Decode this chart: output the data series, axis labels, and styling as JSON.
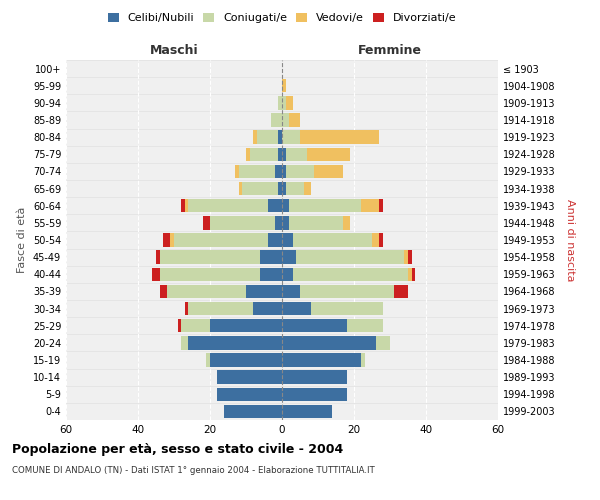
{
  "age_groups": [
    "0-4",
    "5-9",
    "10-14",
    "15-19",
    "20-24",
    "25-29",
    "30-34",
    "35-39",
    "40-44",
    "45-49",
    "50-54",
    "55-59",
    "60-64",
    "65-69",
    "70-74",
    "75-79",
    "80-84",
    "85-89",
    "90-94",
    "95-99",
    "100+"
  ],
  "birth_years": [
    "1999-2003",
    "1994-1998",
    "1989-1993",
    "1984-1988",
    "1979-1983",
    "1974-1978",
    "1969-1973",
    "1964-1968",
    "1959-1963",
    "1954-1958",
    "1949-1953",
    "1944-1948",
    "1939-1943",
    "1934-1938",
    "1929-1933",
    "1924-1928",
    "1919-1923",
    "1914-1918",
    "1909-1913",
    "1904-1908",
    "≤ 1903"
  ],
  "male": {
    "celibi": [
      16,
      18,
      18,
      20,
      26,
      20,
      8,
      10,
      6,
      6,
      4,
      2,
      4,
      1,
      2,
      1,
      1,
      0,
      0,
      0,
      0
    ],
    "coniugati": [
      0,
      0,
      0,
      1,
      2,
      8,
      18,
      22,
      28,
      28,
      26,
      18,
      22,
      10,
      10,
      8,
      6,
      3,
      1,
      0,
      0
    ],
    "vedovi": [
      0,
      0,
      0,
      0,
      0,
      0,
      0,
      0,
      0,
      0,
      1,
      0,
      1,
      1,
      1,
      1,
      1,
      0,
      0,
      0,
      0
    ],
    "divorziati": [
      0,
      0,
      0,
      0,
      0,
      1,
      1,
      2,
      2,
      1,
      2,
      2,
      1,
      0,
      0,
      0,
      0,
      0,
      0,
      0,
      0
    ]
  },
  "female": {
    "nubili": [
      14,
      18,
      18,
      22,
      26,
      18,
      8,
      5,
      3,
      4,
      3,
      2,
      2,
      1,
      1,
      1,
      0,
      0,
      0,
      0,
      0
    ],
    "coniugate": [
      0,
      0,
      0,
      1,
      4,
      10,
      20,
      26,
      32,
      30,
      22,
      15,
      20,
      5,
      8,
      6,
      5,
      2,
      1,
      0,
      0
    ],
    "vedove": [
      0,
      0,
      0,
      0,
      0,
      0,
      0,
      0,
      1,
      1,
      2,
      2,
      5,
      2,
      8,
      12,
      22,
      3,
      2,
      1,
      0
    ],
    "divorziate": [
      0,
      0,
      0,
      0,
      0,
      0,
      0,
      4,
      1,
      1,
      1,
      0,
      1,
      0,
      0,
      0,
      0,
      0,
      0,
      0,
      0
    ]
  },
  "colors": {
    "celibi": "#3d6fa0",
    "coniugati": "#c8d8a8",
    "vedovi": "#f0c060",
    "divorziati": "#cc2020"
  },
  "title": "Popolazione per età, sesso e stato civile - 2004",
  "subtitle": "COMUNE DI ANDALO (TN) - Dati ISTAT 1° gennaio 2004 - Elaborazione TUTTITALIA.IT",
  "xlabel_left": "Maschi",
  "xlabel_right": "Femmine",
  "ylabel_left": "Fasce di età",
  "ylabel_right": "Anni di nascita",
  "xlim": 60,
  "legend_labels": [
    "Celibi/Nubili",
    "Coniugati/e",
    "Vedovi/e",
    "Divorziati/e"
  ],
  "bg_color": "#f0f0f0"
}
